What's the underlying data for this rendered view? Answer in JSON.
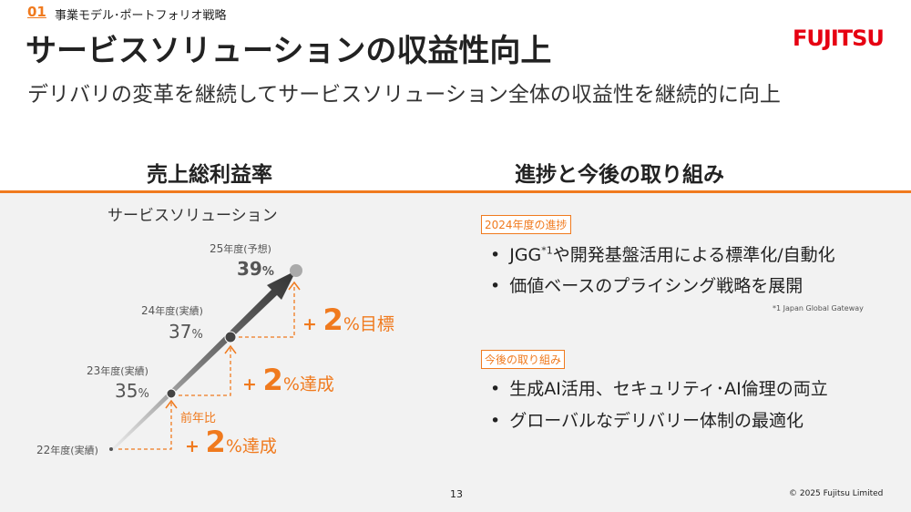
{
  "header": {
    "section_number": "01",
    "section": "事業モデル･ポートフォリオ戦略",
    "title": "サービスソリューションの収益性向上",
    "subtitle": "デリバリの変革を継続してサービスソリューション全体の収益性を継続的に向上",
    "logo": "FUJITSU"
  },
  "left": {
    "heading": "売上総利益率",
    "chart_label": "サービスソリューション",
    "points": [
      {
        "year": "22",
        "label": "年度(実績)"
      },
      {
        "year": "23",
        "label": "年度(実績)",
        "value": "35",
        "unit": "%"
      },
      {
        "year": "24",
        "label": "年度(実績)",
        "value": "37",
        "unit": "%"
      },
      {
        "year": "25",
        "label": "年度(予想)",
        "value": "39",
        "unit": "%"
      }
    ],
    "steps": [
      {
        "note": "前年比",
        "plus": "+",
        "value": "2",
        "suffix": "%達成"
      },
      {
        "plus": "+",
        "value": "2",
        "suffix": "%達成"
      },
      {
        "plus": "+",
        "value": "2",
        "suffix": "%目標"
      }
    ]
  },
  "right": {
    "heading": "進捗と今後の取り組み",
    "progress_tag": "2024年度の進捗",
    "progress_items": [
      {
        "text": "JGG",
        "sup": "*1",
        "rest": "や開発基盤活用による標準化/自動化"
      },
      {
        "text": "価値ベースのプライシング戦略を展開"
      }
    ],
    "footnote": "*1  Japan Global Gateway",
    "future_tag": "今後の取り組み",
    "future_items": [
      "生成AI活用、セキュリティ･AI倫理の両立",
      "グローバルなデリバリー体制の最適化"
    ]
  },
  "footer": {
    "page": "13",
    "copyright": "© 2025 Fujitsu Limited"
  }
}
